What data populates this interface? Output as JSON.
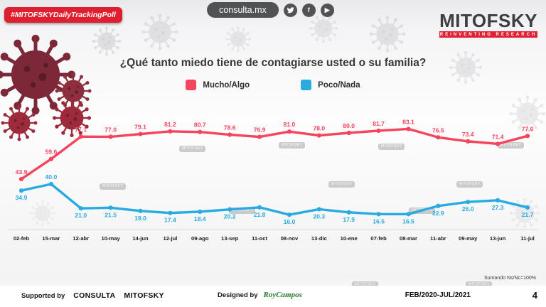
{
  "header": {
    "badge": "#MITOFSKYDailyTrackingPoll",
    "site": "consulta.mx",
    "social": {
      "twitter": "twitter-icon",
      "facebook": "f",
      "youtube": "▶"
    },
    "logo": "MITOFSKY",
    "tagline": "REINVENTING RESEARCH"
  },
  "title": "¿Qué tanto miedo tiene de contagiarse usted o su familia?",
  "chart_data": {
    "type": "line",
    "title": "¿Qué tanto miedo tiene de contagiarse usted o su familia?",
    "xlabel": "",
    "ylabel": "",
    "ylim": [
      10,
      95
    ],
    "grid": false,
    "legend_position": "top",
    "categories": [
      "02-feb",
      "15-mar",
      "12-abr",
      "10-may",
      "14-jun",
      "12-jul",
      "09-ago",
      "13-sep",
      "11-oct",
      "08-nov",
      "13-dic",
      "10-ene",
      "07-feb",
      "08-mar",
      "11-abr",
      "09-may",
      "13-jun",
      "11-jul"
    ],
    "series": [
      {
        "name": "Mucho/Algo",
        "color": "#f4455c",
        "values": [
          43.9,
          59.6,
          77.1,
          77.0,
          79.1,
          81.2,
          80.7,
          78.6,
          76.9,
          81.0,
          78.0,
          80.0,
          81.7,
          83.1,
          76.5,
          73.4,
          71.4,
          77.6
        ]
      },
      {
        "name": "Poco/Nada",
        "color": "#29abe2",
        "values": [
          34.9,
          40.0,
          21.0,
          21.5,
          19.0,
          17.4,
          18.4,
          20.2,
          21.8,
          16.0,
          20.3,
          17.9,
          16.5,
          16.5,
          22.9,
          26.0,
          27.3,
          21.7
        ]
      }
    ]
  },
  "note": "Sumando Ns/Nc=100%",
  "decor": {
    "watermark": "MITOFSKY"
  },
  "footer": {
    "supported_by_label": "Supported by",
    "consulta": "CONSULTA",
    "mitofsky": "MITOFSKY",
    "designed_by_label": "Designed by",
    "designed_by": "RoyCampos",
    "period": "FEB/2020-JUL/2021",
    "page": "4"
  }
}
